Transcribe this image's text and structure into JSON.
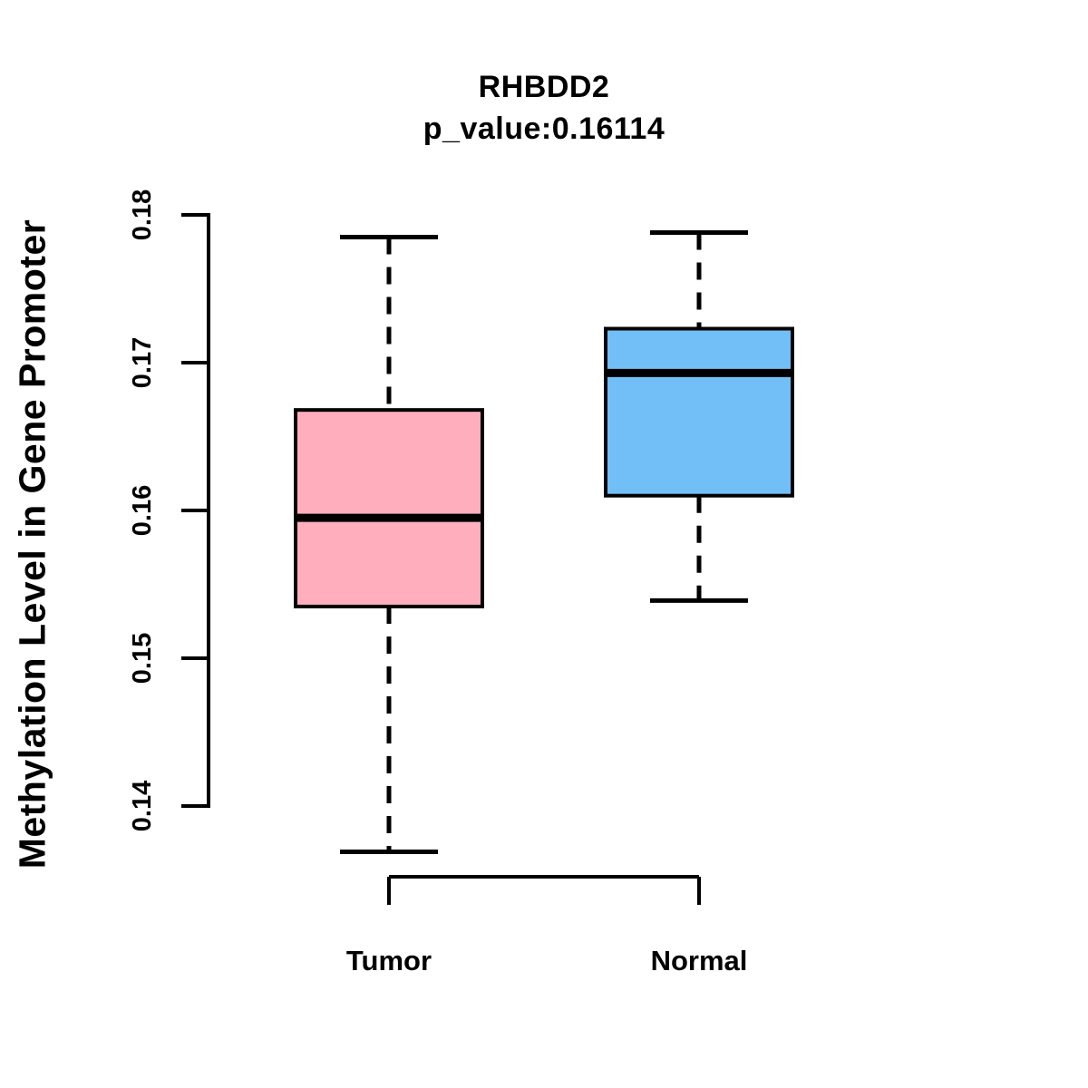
{
  "page": {
    "background": "#FFFFFF"
  },
  "chart_data": {
    "type": "boxplot",
    "title": "RHBDD2",
    "subtitle": "p_value:0.16114",
    "ylabel": "Methylation Level in Gene Promoter",
    "xlabel": "",
    "categories": [
      "Tumor",
      "Normal"
    ],
    "series": [
      {
        "name": "Tumor",
        "fill_color": "#FFAEBE",
        "whisker_low": 0.1369,
        "q1": 0.1535,
        "median": 0.1595,
        "q3": 0.1668,
        "whisker_high": 0.1785,
        "outliers": []
      },
      {
        "name": "Normal",
        "fill_color": "#72BFF8",
        "whisker_low": 0.1539,
        "q1": 0.161,
        "median": 0.1693,
        "q3": 0.1723,
        "whisker_high": 0.1788,
        "outliers": []
      }
    ],
    "yticks": [
      0.18,
      0.17,
      0.16,
      0.15,
      0.14
    ],
    "ytick_labels": [
      "0.18",
      "0.17",
      "0.16",
      "0.15",
      "0.14"
    ],
    "ylim": [
      0.14,
      0.18
    ],
    "grid": false,
    "legend_position": "none",
    "line_color": "#000000",
    "whisker_style": "dashed"
  }
}
